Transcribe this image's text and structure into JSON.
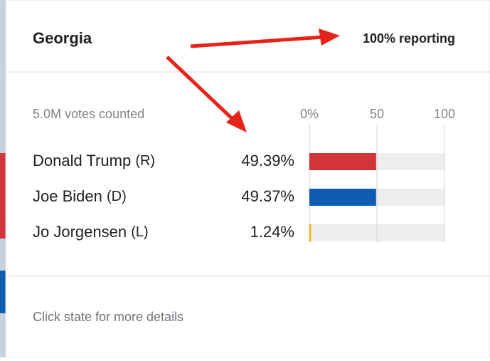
{
  "header": {
    "title": "Georgia",
    "reporting": "100% reporting"
  },
  "votes_counted": "5.0M votes counted",
  "chart": {
    "xlim": [
      0,
      100
    ],
    "xticks": [
      {
        "value": 0,
        "label": "0%"
      },
      50,
      100
    ],
    "track_color": "#eeeeee",
    "grid_color": "#d6d6d6"
  },
  "candidates": [
    {
      "name": "Donald Trump",
      "party": "(R)",
      "value": 49.39,
      "value_label": "49.39%",
      "color": "#d2343c"
    },
    {
      "name": "Joe Biden",
      "party": "(D)",
      "value": 49.37,
      "value_label": "49.37%",
      "color": "#0f5cb2"
    },
    {
      "name": "Jo Jorgensen",
      "party": "(L)",
      "value": 1.24,
      "value_label": "1.24%",
      "color": "#f4b400"
    }
  ],
  "footer": "Click state for more details"
}
